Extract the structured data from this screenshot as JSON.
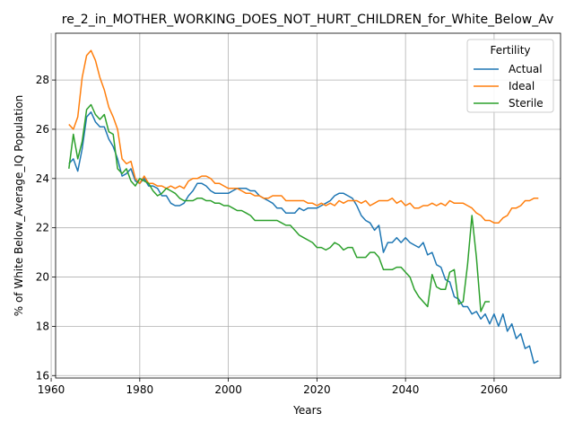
{
  "chart_data": {
    "type": "line",
    "title": "re_2_in_MOTHER_WORKING_DOES_NOT_HURT_CHILDREN_for_White_Below_Av",
    "xlabel": "Years",
    "ylabel": "% of White Below_Average_IQ Population",
    "xlim": [
      1961,
      2075
    ],
    "ylim": [
      15.9,
      29.9
    ],
    "xticks": [
      1960,
      1980,
      2000,
      2020,
      2040,
      2060
    ],
    "yticks": [
      16,
      18,
      20,
      22,
      24,
      26,
      28
    ],
    "grid": true,
    "legend": {
      "title": "Fertility",
      "position": "top-right"
    },
    "series": [
      {
        "name": "Actual",
        "color": "#1f77b4",
        "x": [
          1964,
          1965,
          1966,
          1967,
          1968,
          1969,
          1970,
          1971,
          1972,
          1973,
          1974,
          1975,
          1976,
          1977,
          1978,
          1979,
          1980,
          1981,
          1982,
          1983,
          1984,
          1985,
          1986,
          1987,
          1988,
          1989,
          1990,
          1991,
          1992,
          1993,
          1994,
          1995,
          1996,
          1997,
          1998,
          1999,
          2000,
          2001,
          2002,
          2003,
          2004,
          2005,
          2006,
          2007,
          2008,
          2009,
          2010,
          2011,
          2012,
          2013,
          2014,
          2015,
          2016,
          2017,
          2018,
          2019,
          2020,
          2021,
          2022,
          2023,
          2024,
          2025,
          2026,
          2027,
          2028,
          2029,
          2030,
          2031,
          2032,
          2033,
          2034,
          2035,
          2036,
          2037,
          2038,
          2039,
          2040,
          2041,
          2042,
          2043,
          2044,
          2045,
          2046,
          2047,
          2048,
          2049,
          2050,
          2051,
          2052,
          2053,
          2054,
          2055,
          2056,
          2057,
          2058,
          2059,
          2060,
          2061,
          2062,
          2063,
          2064,
          2065,
          2066,
          2067,
          2068,
          2069,
          2070
        ],
        "values": [
          24.6,
          24.8,
          24.3,
          25.2,
          26.5,
          26.7,
          26.3,
          26.1,
          26.1,
          25.6,
          25.3,
          24.8,
          24.1,
          24.2,
          24.4,
          23.9,
          23.8,
          24.0,
          23.7,
          23.7,
          23.6,
          23.3,
          23.3,
          23.0,
          22.9,
          22.9,
          23.0,
          23.3,
          23.5,
          23.8,
          23.8,
          23.7,
          23.5,
          23.4,
          23.4,
          23.4,
          23.4,
          23.5,
          23.6,
          23.6,
          23.6,
          23.5,
          23.5,
          23.3,
          23.2,
          23.1,
          23.0,
          22.8,
          22.8,
          22.6,
          22.6,
          22.6,
          22.8,
          22.7,
          22.8,
          22.8,
          22.8,
          22.9,
          23.0,
          23.1,
          23.3,
          23.4,
          23.4,
          23.3,
          23.2,
          22.9,
          22.5,
          22.3,
          22.2,
          21.9,
          22.1,
          21.0,
          21.4,
          21.4,
          21.6,
          21.4,
          21.6,
          21.4,
          21.3,
          21.2,
          21.4,
          20.9,
          21.0,
          20.5,
          20.4,
          19.9,
          19.8,
          19.2,
          19.1,
          18.8,
          18.8,
          18.5,
          18.6,
          18.3,
          18.5,
          18.1,
          18.5,
          18.0,
          18.5,
          17.8,
          18.1,
          17.5,
          17.7,
          17.1,
          17.2,
          16.5,
          16.6
        ]
      },
      {
        "name": "Ideal",
        "color": "#ff7f0e",
        "x": [
          1964,
          1965,
          1966,
          1967,
          1968,
          1969,
          1970,
          1971,
          1972,
          1973,
          1974,
          1975,
          1976,
          1977,
          1978,
          1979,
          1980,
          1981,
          1982,
          1983,
          1984,
          1985,
          1986,
          1987,
          1988,
          1989,
          1990,
          1991,
          1992,
          1993,
          1994,
          1995,
          1996,
          1997,
          1998,
          1999,
          2000,
          2001,
          2002,
          2003,
          2004,
          2005,
          2006,
          2007,
          2008,
          2009,
          2010,
          2011,
          2012,
          2013,
          2014,
          2015,
          2016,
          2017,
          2018,
          2019,
          2020,
          2021,
          2022,
          2023,
          2024,
          2025,
          2026,
          2027,
          2028,
          2029,
          2030,
          2031,
          2032,
          2033,
          2034,
          2035,
          2036,
          2037,
          2038,
          2039,
          2040,
          2041,
          2042,
          2043,
          2044,
          2045,
          2046,
          2047,
          2048,
          2049,
          2050,
          2051,
          2052,
          2053,
          2054,
          2055,
          2056,
          2057,
          2058,
          2059,
          2060,
          2061,
          2062,
          2063,
          2064,
          2065,
          2066,
          2067,
          2068,
          2069,
          2070
        ],
        "values": [
          26.2,
          26.0,
          26.5,
          28.1,
          29.0,
          29.2,
          28.8,
          28.1,
          27.6,
          26.9,
          26.5,
          26.0,
          24.8,
          24.6,
          24.7,
          24.0,
          23.8,
          24.1,
          23.8,
          23.8,
          23.7,
          23.7,
          23.6,
          23.7,
          23.6,
          23.7,
          23.6,
          23.9,
          24.0,
          24.0,
          24.1,
          24.1,
          24.0,
          23.8,
          23.8,
          23.7,
          23.6,
          23.6,
          23.6,
          23.5,
          23.4,
          23.4,
          23.3,
          23.3,
          23.2,
          23.2,
          23.3,
          23.3,
          23.3,
          23.1,
          23.1,
          23.1,
          23.1,
          23.1,
          23.0,
          23.0,
          22.9,
          23.0,
          22.9,
          23.0,
          22.9,
          23.1,
          23.0,
          23.1,
          23.1,
          23.1,
          23.0,
          23.1,
          22.9,
          23.0,
          23.1,
          23.1,
          23.1,
          23.2,
          23.0,
          23.1,
          22.9,
          23.0,
          22.8,
          22.8,
          22.9,
          22.9,
          23.0,
          22.9,
          23.0,
          22.9,
          23.1,
          23.0,
          23.0,
          23.0,
          22.9,
          22.8,
          22.6,
          22.5,
          22.3,
          22.3,
          22.2,
          22.2,
          22.4,
          22.5,
          22.8,
          22.8,
          22.9,
          23.1,
          23.1,
          23.2,
          23.2
        ]
      },
      {
        "name": "Sterile",
        "color": "#2ca02c",
        "x": [
          1964,
          1965,
          1966,
          1967,
          1968,
          1969,
          1970,
          1971,
          1972,
          1973,
          1974,
          1975,
          1976,
          1977,
          1978,
          1979,
          1980,
          1981,
          1982,
          1983,
          1984,
          1985,
          1986,
          1987,
          1988,
          1989,
          1990,
          1991,
          1992,
          1993,
          1994,
          1995,
          1996,
          1997,
          1998,
          1999,
          2000,
          2001,
          2002,
          2003,
          2004,
          2005,
          2006,
          2007,
          2008,
          2009,
          2010,
          2011,
          2012,
          2013,
          2014,
          2015,
          2016,
          2017,
          2018,
          2019,
          2020,
          2021,
          2022,
          2023,
          2024,
          2025,
          2026,
          2027,
          2028,
          2029,
          2030,
          2031,
          2032,
          2033,
          2034,
          2035,
          2036,
          2037,
          2038,
          2039,
          2040,
          2041,
          2042,
          2043,
          2044,
          2045,
          2046,
          2047,
          2048,
          2049,
          2050,
          2051,
          2052,
          2053,
          2054,
          2055,
          2056,
          2057,
          2058,
          2059
        ],
        "values": [
          24.4,
          25.8,
          24.8,
          25.5,
          26.8,
          27.0,
          26.6,
          26.4,
          26.6,
          25.9,
          25.8,
          24.4,
          24.2,
          24.4,
          23.9,
          23.7,
          24.0,
          23.9,
          23.8,
          23.5,
          23.3,
          23.4,
          23.6,
          23.5,
          23.4,
          23.2,
          23.1,
          23.1,
          23.1,
          23.2,
          23.2,
          23.1,
          23.1,
          23.0,
          23.0,
          22.9,
          22.9,
          22.8,
          22.7,
          22.7,
          22.6,
          22.5,
          22.3,
          22.3,
          22.3,
          22.3,
          22.3,
          22.3,
          22.2,
          22.1,
          22.1,
          21.9,
          21.7,
          21.6,
          21.5,
          21.4,
          21.2,
          21.2,
          21.1,
          21.2,
          21.4,
          21.3,
          21.1,
          21.2,
          21.2,
          20.8,
          20.8,
          20.8,
          21.0,
          21.0,
          20.8,
          20.3,
          20.3,
          20.3,
          20.4,
          20.4,
          20.2,
          20.0,
          19.5,
          19.2,
          19.0,
          18.8,
          20.1,
          19.6,
          19.5,
          19.5,
          20.2,
          20.3,
          18.9,
          19.0,
          20.5,
          22.5,
          20.8,
          18.6,
          19.0,
          19.0
        ]
      }
    ]
  }
}
